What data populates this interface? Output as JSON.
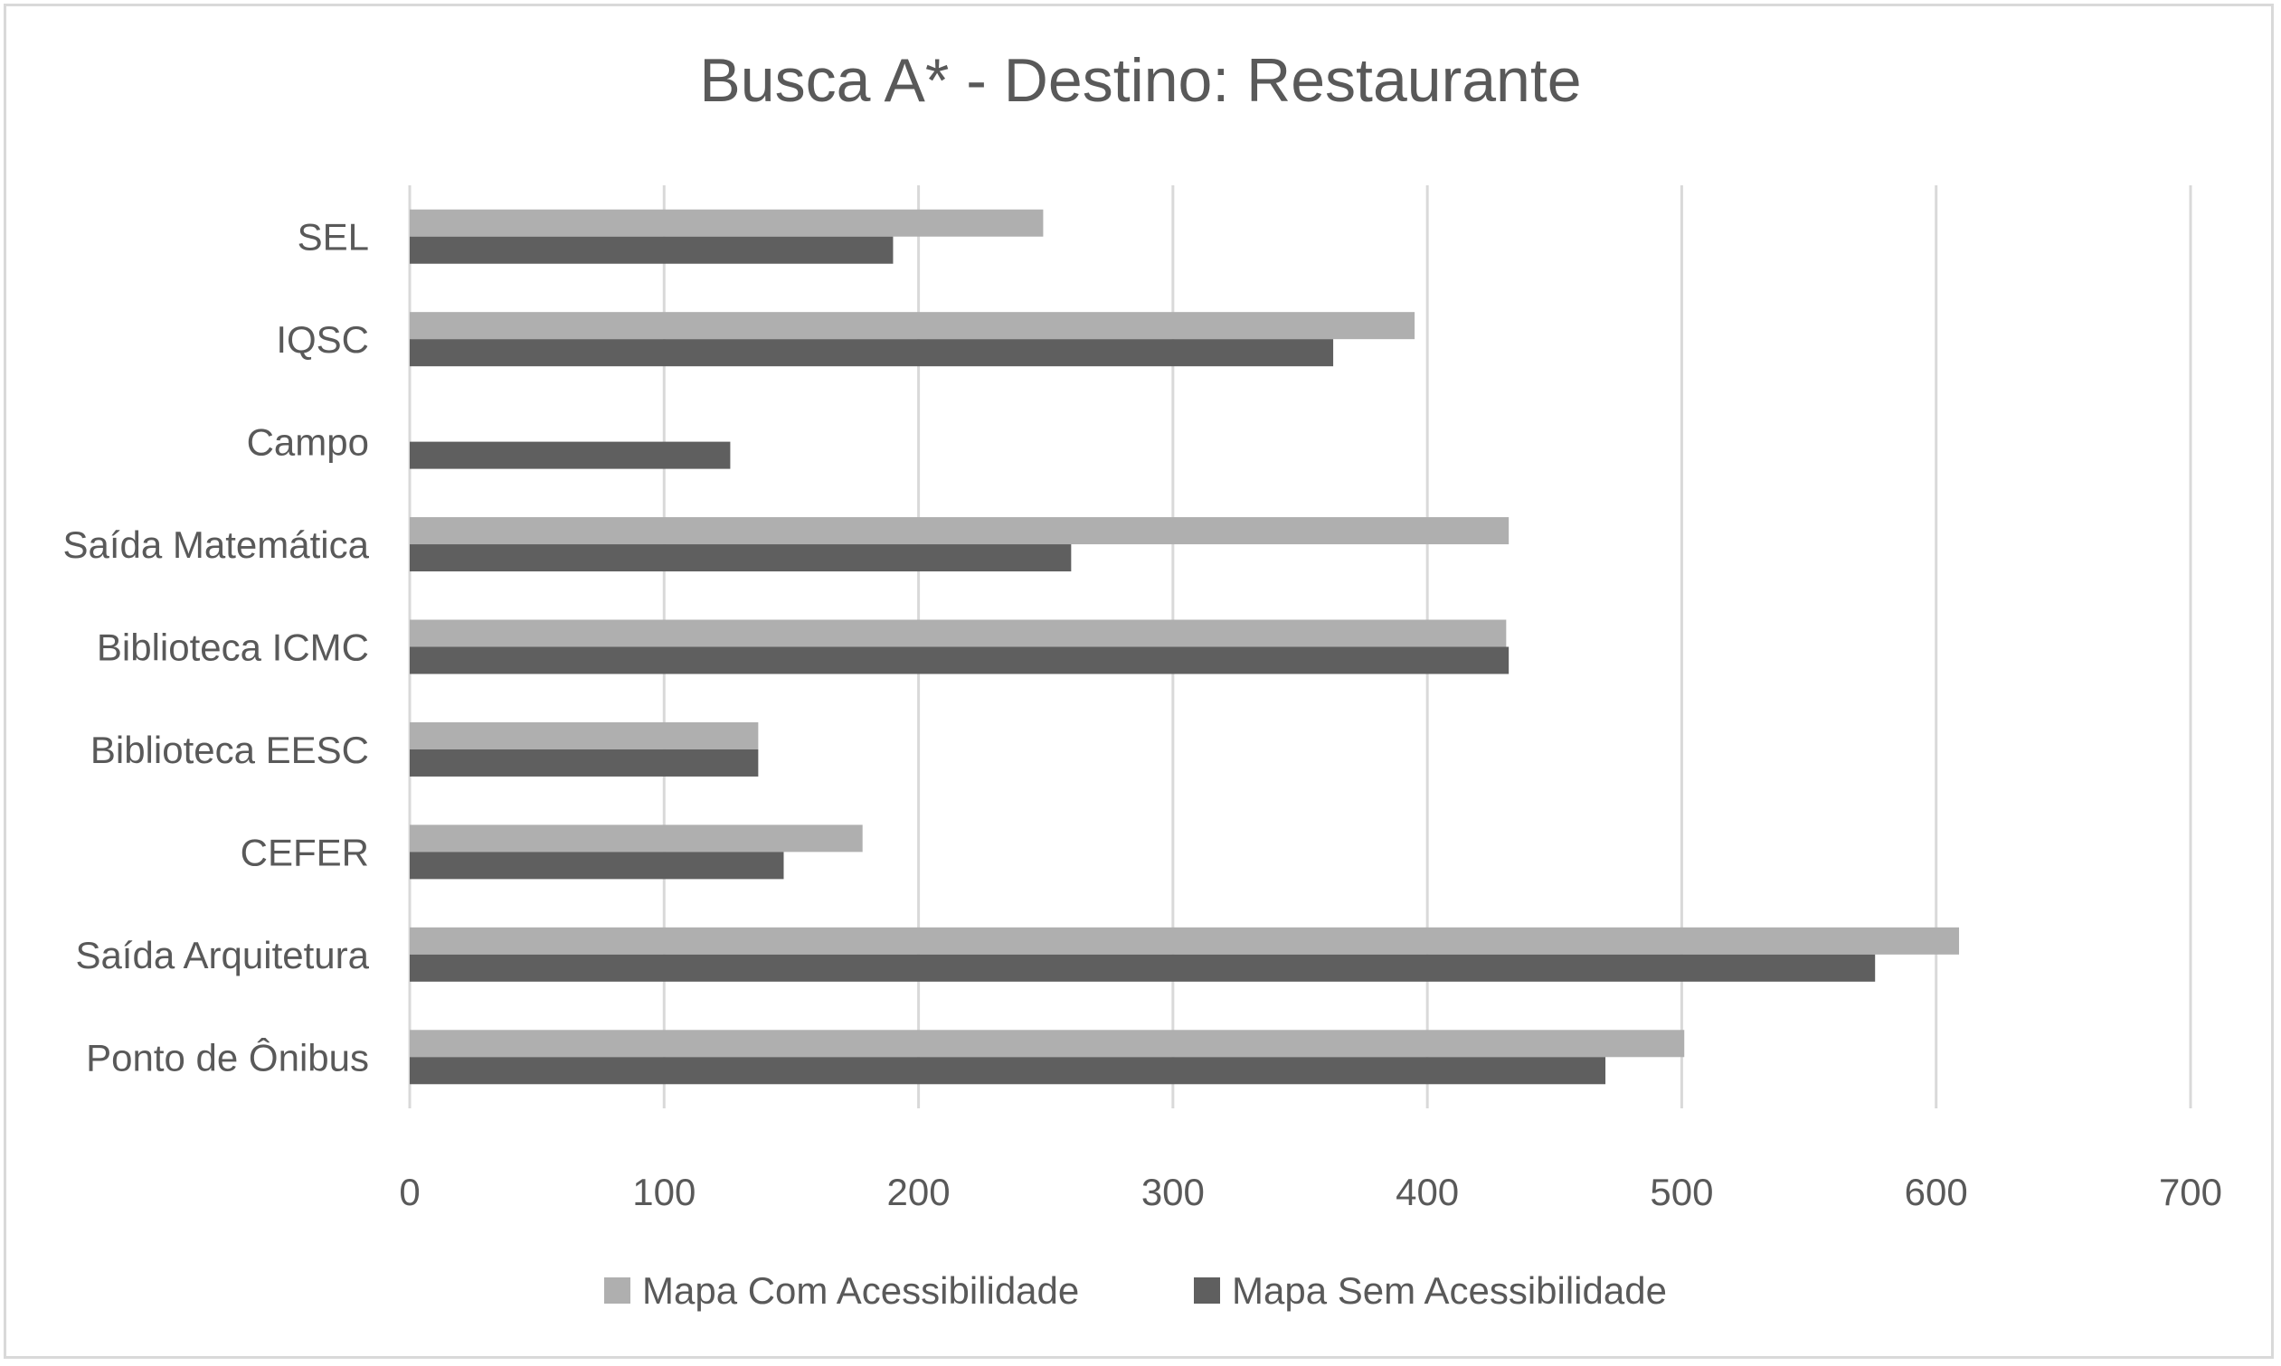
{
  "chart_data": {
    "type": "bar",
    "orientation": "horizontal",
    "title": "Busca A* - Destino: Restaurante",
    "xlabel": "",
    "ylabel": "",
    "categories": [
      "Ponto de Ônibus",
      "Saída Arquitetura",
      "CEFER",
      "Biblioteca EESC",
      "Biblioteca ICMC",
      "Saída Matemática",
      "Campo",
      "IQSC",
      "SEL"
    ],
    "series": [
      {
        "name": "Mapa Com Acessibilidade",
        "color": "#afafaf",
        "values": [
          501,
          609,
          178,
          137,
          431,
          432,
          0,
          395,
          249
        ]
      },
      {
        "name": "Mapa Sem Acessibilidade",
        "color": "#5f5f5f",
        "values": [
          470,
          576,
          147,
          137,
          432,
          260,
          126,
          363,
          190
        ]
      }
    ],
    "xlim": [
      0,
      700
    ],
    "xticks": [
      "0",
      "100",
      "200",
      "300",
      "400",
      "500",
      "600",
      "700"
    ],
    "grid": "vertical",
    "gridline_color": "#d9d9d9",
    "legend_position": "bottom"
  }
}
